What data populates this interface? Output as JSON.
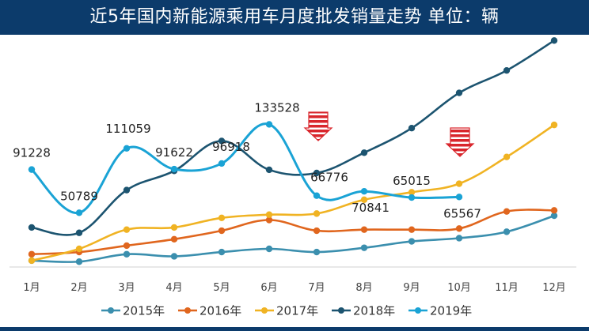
{
  "page": {
    "title": "近5年国内新能源乘用车月度批发销量走势  单位：辆"
  },
  "chart_data": {
    "type": "line",
    "title": "近5年国内新能源乘用车月度批发销量走势  单位：辆",
    "xlabel": "",
    "ylabel": "",
    "categories": [
      "1月",
      "2月",
      "3月",
      "4月",
      "5月",
      "6月",
      "7月",
      "8月",
      "9月",
      "10月",
      "11月",
      "12月"
    ],
    "ylim": [
      0,
      210000
    ],
    "grid": false,
    "legend_position": "bottom",
    "series": [
      {
        "name": "2015年",
        "color": "#3b8fae",
        "values": [
          6000,
          5000,
          12000,
          10000,
          14000,
          17000,
          14000,
          18000,
          24000,
          27000,
          33000,
          48000
        ]
      },
      {
        "name": "2016年",
        "color": "#e0661e",
        "values": [
          12000,
          14000,
          20000,
          26000,
          34000,
          44000,
          34000,
          35000,
          35000,
          36000,
          52000,
          53000
        ]
      },
      {
        "name": "2017年",
        "color": "#f0b323",
        "values": [
          6000,
          17000,
          35000,
          37000,
          46000,
          49000,
          50000,
          63000,
          70000,
          78000,
          103000,
          133000
        ]
      },
      {
        "name": "2018年",
        "color": "#1c5470",
        "values": [
          37000,
          32000,
          72000,
          90000,
          118000,
          91000,
          88000,
          107000,
          130000,
          163000,
          184000,
          212000
        ]
      },
      {
        "name": "2019年",
        "color": "#1aa3d5",
        "values": [
          91228,
          50789,
          111059,
          91622,
          96918,
          133528,
          66776,
          70841,
          65015,
          65567,
          null,
          null
        ],
        "data_labels": [
          "91228",
          "50789",
          "111059",
          "91622",
          "96918",
          "133528",
          "66776",
          "70841",
          "65015",
          "65567"
        ]
      }
    ],
    "annotations": [
      {
        "type": "down-arrow",
        "x": "7月"
      },
      {
        "type": "down-arrow",
        "x": "10月"
      }
    ]
  }
}
